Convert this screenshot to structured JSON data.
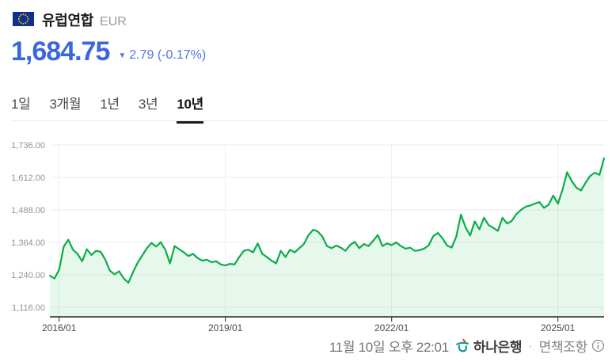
{
  "header": {
    "title": "유럽연합",
    "currency_code": "EUR",
    "price": "1,684.75",
    "change_arrow": "▼",
    "change_text": "2.79 (-0.17%)",
    "change_direction": "down"
  },
  "colors": {
    "price_blue": "#3A66E0",
    "change_blue": "#4F75E6",
    "flag_blue": "#10308C",
    "star_yellow": "#FFCC00",
    "hana_teal": "#0B9D8B",
    "hana_red": "#E8502F"
  },
  "tabs": {
    "items": [
      {
        "label": "1일",
        "active": false
      },
      {
        "label": "3개월",
        "active": false
      },
      {
        "label": "1년",
        "active": false
      },
      {
        "label": "3년",
        "active": false
      },
      {
        "label": "10년",
        "active": true
      }
    ]
  },
  "chart_data": {
    "type": "area",
    "title": "EUR/KRW 10년 환율 추이",
    "grid": true,
    "legend": false,
    "ylim": [
      1116,
      1736
    ],
    "y_ticks": [
      1116,
      1240,
      1364,
      1488,
      1612,
      1736
    ],
    "y_tick_labels": [
      "1,116.00",
      "1,240.00",
      "1,364.00",
      "1,488.00",
      "1,612.00",
      "1,736.00"
    ],
    "x_tick_labels": [
      "2016/01",
      "2019/01",
      "2022/01",
      "2025/01"
    ],
    "line_color": "#0AAD49",
    "fill_color": "rgba(10,173,73,0.10)",
    "x": [
      "2015/11",
      "2015/12",
      "2016/01",
      "2016/02",
      "2016/03",
      "2016/04",
      "2016/05",
      "2016/06",
      "2016/07",
      "2016/08",
      "2016/09",
      "2016/10",
      "2016/11",
      "2016/12",
      "2017/01",
      "2017/02",
      "2017/03",
      "2017/04",
      "2017/05",
      "2017/06",
      "2017/07",
      "2017/08",
      "2017/09",
      "2017/10",
      "2017/11",
      "2017/12",
      "2018/01",
      "2018/02",
      "2018/03",
      "2018/04",
      "2018/05",
      "2018/06",
      "2018/07",
      "2018/08",
      "2018/09",
      "2018/10",
      "2018/11",
      "2018/12",
      "2019/01",
      "2019/02",
      "2019/03",
      "2019/04",
      "2019/05",
      "2019/06",
      "2019/07",
      "2019/08",
      "2019/09",
      "2019/10",
      "2019/11",
      "2019/12",
      "2020/01",
      "2020/02",
      "2020/03",
      "2020/04",
      "2020/05",
      "2020/06",
      "2020/07",
      "2020/08",
      "2020/09",
      "2020/10",
      "2020/11",
      "2020/12",
      "2021/01",
      "2021/02",
      "2021/03",
      "2021/04",
      "2021/05",
      "2021/06",
      "2021/07",
      "2021/08",
      "2021/09",
      "2021/10",
      "2021/11",
      "2021/12",
      "2022/01",
      "2022/02",
      "2022/03",
      "2022/04",
      "2022/05",
      "2022/06",
      "2022/07",
      "2022/08",
      "2022/09",
      "2022/10",
      "2022/11",
      "2022/12",
      "2023/01",
      "2023/02",
      "2023/03",
      "2023/04",
      "2023/05",
      "2023/06",
      "2023/07",
      "2023/08",
      "2023/09",
      "2023/10",
      "2023/11",
      "2023/12",
      "2024/01",
      "2024/02",
      "2024/03",
      "2024/04",
      "2024/05",
      "2024/06",
      "2024/07",
      "2024/08",
      "2024/09",
      "2024/10",
      "2024/11",
      "2024/12",
      "2025/01",
      "2025/02",
      "2025/03",
      "2025/04",
      "2025/05",
      "2025/06",
      "2025/07",
      "2025/08",
      "2025/09",
      "2025/10",
      "2025/11"
    ],
    "values": [
      1237,
      1226,
      1260,
      1348,
      1374,
      1336,
      1320,
      1292,
      1338,
      1316,
      1332,
      1328,
      1298,
      1256,
      1242,
      1254,
      1226,
      1210,
      1250,
      1286,
      1314,
      1342,
      1362,
      1348,
      1365,
      1336,
      1284,
      1350,
      1338,
      1326,
      1312,
      1320,
      1304,
      1294,
      1298,
      1288,
      1292,
      1280,
      1276,
      1282,
      1280,
      1308,
      1332,
      1336,
      1326,
      1360,
      1320,
      1308,
      1294,
      1284,
      1332,
      1308,
      1336,
      1326,
      1342,
      1358,
      1392,
      1412,
      1406,
      1386,
      1350,
      1342,
      1352,
      1344,
      1332,
      1354,
      1366,
      1342,
      1358,
      1350,
      1370,
      1392,
      1350,
      1360,
      1354,
      1364,
      1350,
      1340,
      1344,
      1332,
      1334,
      1340,
      1352,
      1388,
      1400,
      1380,
      1352,
      1344,
      1386,
      1470,
      1422,
      1390,
      1444,
      1414,
      1458,
      1430,
      1420,
      1408,
      1458,
      1436,
      1446,
      1472,
      1488,
      1500,
      1505,
      1512,
      1518,
      1496,
      1508,
      1543,
      1512,
      1565,
      1632,
      1598,
      1573,
      1562,
      1592,
      1618,
      1630,
      1622,
      1684.75
    ]
  },
  "footer": {
    "timestamp": "11월 10일 오후 22:01",
    "bank_name": "하나은행",
    "separator": "·",
    "disclaimer": "면책조항"
  }
}
